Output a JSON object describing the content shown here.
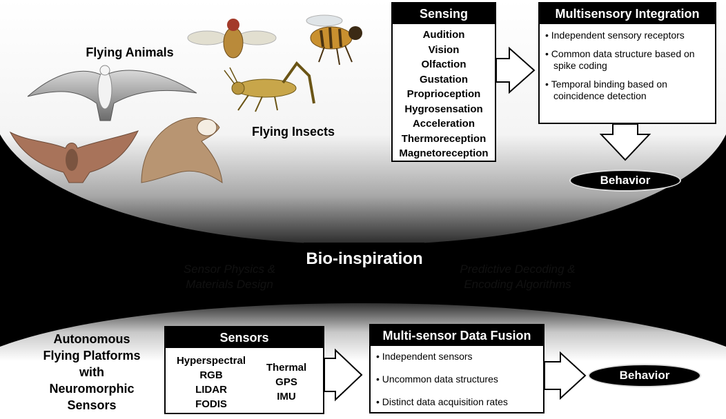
{
  "bio": {
    "flying_animals_label": "Flying Animals",
    "flying_insects_label": "Flying Insects",
    "sensing": {
      "title": "Sensing",
      "items": [
        "Audition",
        "Vision",
        "Olfaction",
        "Gustation",
        "Proprioception",
        "Hygrosensation",
        "Acceleration",
        "Thermoreception",
        "Magnetoreception"
      ]
    },
    "integration": {
      "title": "Multisensory Integration",
      "bullets": [
        "Independent sensory receptors",
        "Common data structure based on spike coding",
        "Temporal binding based on coincidence detection"
      ]
    },
    "behavior_label": "Behavior"
  },
  "middle": {
    "bio_inspiration_label": "Bio-inspiration",
    "left_caption": [
      "Sensor Physics &",
      "Materials Design"
    ],
    "right_caption": [
      "Predictive Decoding &",
      "Encoding Algorithms"
    ]
  },
  "tech": {
    "platform_label": [
      "Autonomous",
      "Flying Platforms",
      "with",
      "Neuromorphic",
      "Sensors"
    ],
    "sensors": {
      "title": "Sensors",
      "col1": [
        "Hyperspectral",
        "RGB",
        "LIDAR",
        "FODIS"
      ],
      "col2": [
        "Thermal",
        "GPS",
        "IMU"
      ]
    },
    "fusion": {
      "title": "Multi-sensor Data Fusion",
      "bullets": [
        "Independent sensors",
        "Uncommon data structures",
        "Distinct data acquisition rates"
      ]
    },
    "behavior_label": "Behavior"
  },
  "colors": {
    "background": "#000000",
    "panel": "#ffffff",
    "box_header": "#000000"
  },
  "icons": [
    "seagull-illustration",
    "bat-illustration",
    "owl-illustration",
    "fruit-fly-illustration",
    "bee-illustration",
    "grasshopper-illustration"
  ]
}
